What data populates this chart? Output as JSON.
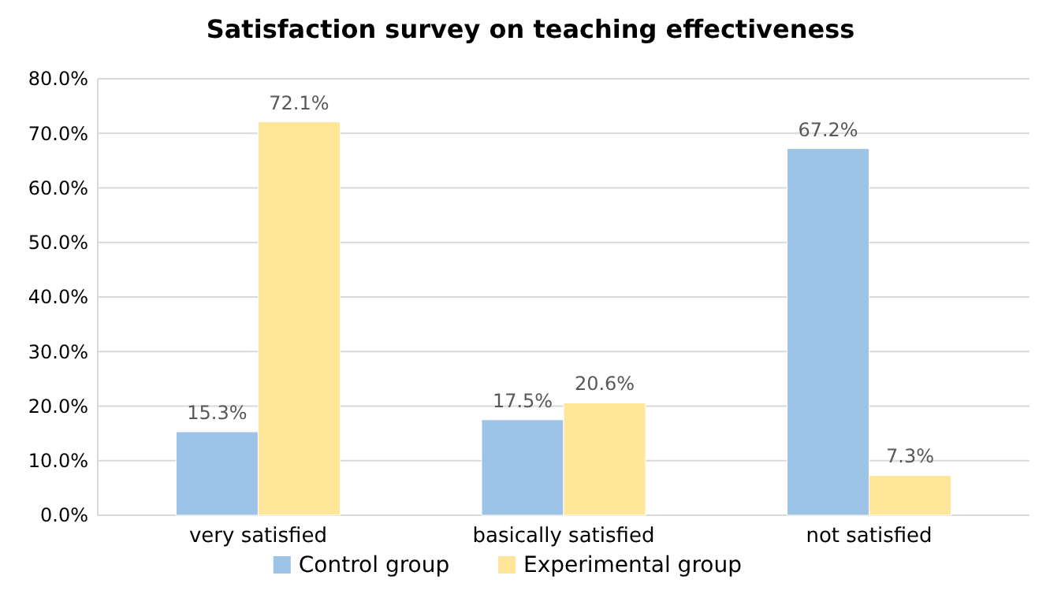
{
  "chart_data": {
    "type": "bar",
    "title": "Satisfaction survey on teaching effectiveness",
    "categories": [
      "very satisfied",
      "basically satisfied",
      "not satisfied"
    ],
    "series": [
      {
        "name": "Control group",
        "color": "#9dc3e6",
        "values": [
          15.3,
          17.5,
          67.2
        ],
        "value_labels": [
          "15.3%",
          "17.5%",
          "67.2%"
        ]
      },
      {
        "name": "Experimental group",
        "color": "#ffe699",
        "values": [
          72.1,
          20.6,
          7.3
        ],
        "value_labels": [
          "72.1%",
          "20.6%",
          "7.3%"
        ]
      }
    ],
    "ylim": [
      0,
      80
    ],
    "yticks": [
      {
        "value": 0,
        "label": "0.0%"
      },
      {
        "value": 10,
        "label": "10.0%"
      },
      {
        "value": 20,
        "label": "20.0%"
      },
      {
        "value": 30,
        "label": "30.0%"
      },
      {
        "value": 40,
        "label": "40.0%"
      },
      {
        "value": 50,
        "label": "50.0%"
      },
      {
        "value": 60,
        "label": "60.0%"
      },
      {
        "value": 70,
        "label": "70.0%"
      },
      {
        "value": 80,
        "label": "80.0%"
      }
    ],
    "grid": "y",
    "legend": "bottom"
  }
}
